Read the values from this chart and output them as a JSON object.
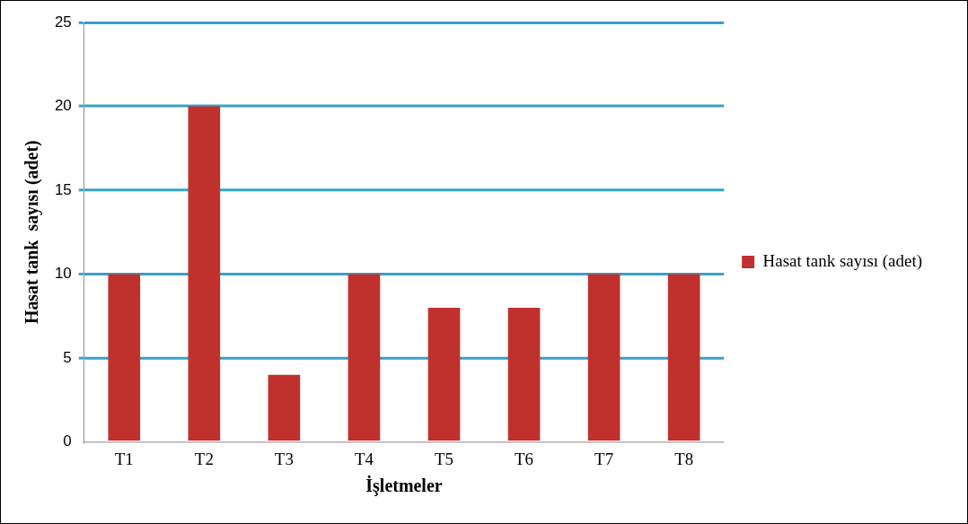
{
  "chart_data": {
    "type": "bar",
    "xlabel": "İşletmeler",
    "ylabel": "Hasat tank  sayısı (adet)",
    "categories": [
      "T1",
      "T2",
      "T3",
      "T4",
      "T5",
      "T6",
      "T7",
      "T8"
    ],
    "series": [
      {
        "name": "Hasat tank sayısı (adet)",
        "color": "#c0302c",
        "values": [
          10,
          20,
          4,
          10,
          8,
          8,
          10,
          10
        ]
      }
    ],
    "ylim": [
      0,
      25
    ],
    "yticks": [
      0,
      5,
      10,
      15,
      20,
      25
    ],
    "grid": "y",
    "legend": "right"
  }
}
